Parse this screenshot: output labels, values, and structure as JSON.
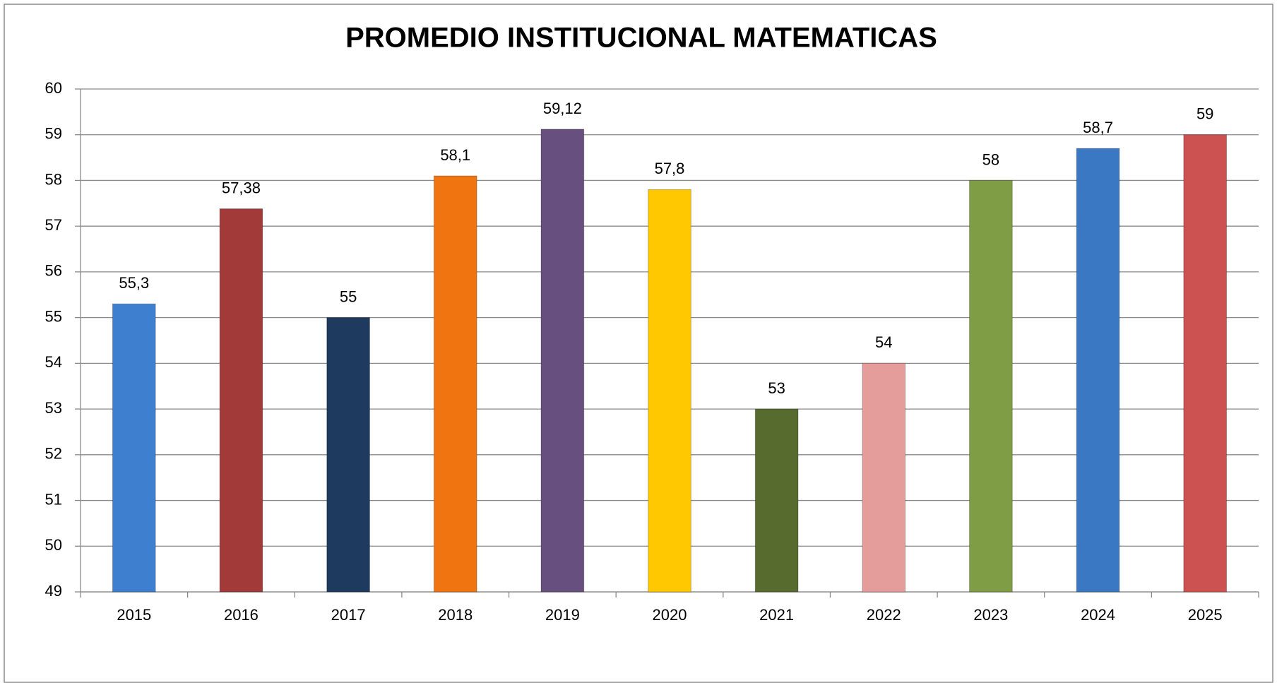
{
  "chart_data": {
    "type": "bar",
    "title": "PROMEDIO INSTITUCIONAL MATEMATICAS",
    "categories": [
      "2015",
      "2016",
      "2017",
      "2018",
      "2019",
      "2020",
      "2021",
      "2022",
      "2023",
      "2024",
      "2025"
    ],
    "values": [
      55.3,
      57.38,
      55,
      58.1,
      59.12,
      57.8,
      53,
      54,
      58,
      58.7,
      59
    ],
    "value_labels": [
      "55,3",
      "57,38",
      "55",
      "58,1",
      "59,12",
      "57,8",
      "53",
      "54",
      "58",
      "58,7",
      "59"
    ],
    "colors": [
      "#3f7fcf",
      "#a33a3a",
      "#1e3a5f",
      "#f07510",
      "#67507f",
      "#ffc800",
      "#586b2e",
      "#e59d9c",
      "#7f9d44",
      "#3b78c4",
      "#cc5252"
    ],
    "ylim": [
      49,
      60
    ],
    "yticks": [
      49,
      50,
      51,
      52,
      53,
      54,
      55,
      56,
      57,
      58,
      59,
      60
    ],
    "grid": true
  }
}
